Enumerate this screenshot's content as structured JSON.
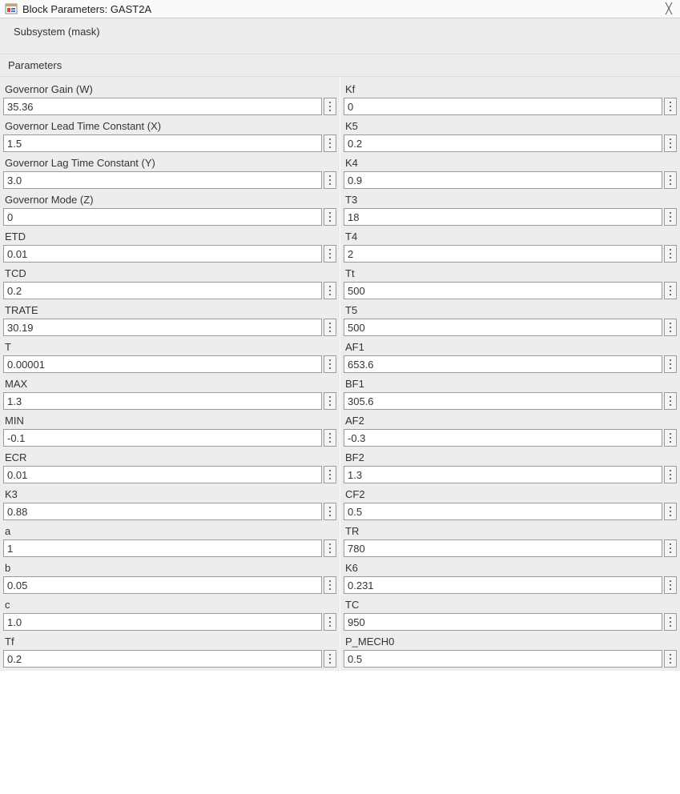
{
  "window": {
    "title": "Block Parameters: GAST2A",
    "subsystem_label": "Subsystem (mask)",
    "parameters_label": "Parameters"
  },
  "colors": {
    "panel_bg": "#ededed",
    "border": "#9a9a9a",
    "text": "#333333",
    "input_bg": "#ffffff"
  },
  "left_params": [
    {
      "label": "Governor Gain (W)",
      "value": "35.36"
    },
    {
      "label": "Governor Lead Time Constant (X)",
      "value": "1.5"
    },
    {
      "label": "Governor Lag Time Constant (Y)",
      "value": "3.0"
    },
    {
      "label": "Governor Mode (Z)",
      "value": "0"
    },
    {
      "label": "ETD",
      "value": "0.01"
    },
    {
      "label": "TCD",
      "value": "0.2"
    },
    {
      "label": "TRATE",
      "value": "30.19"
    },
    {
      "label": "T",
      "value": "0.00001"
    },
    {
      "label": "MAX",
      "value": "1.3"
    },
    {
      "label": "MIN",
      "value": "-0.1"
    },
    {
      "label": "ECR",
      "value": "0.01"
    },
    {
      "label": "K3",
      "value": "0.88"
    },
    {
      "label": "a",
      "value": "1"
    },
    {
      "label": "b",
      "value": "0.05"
    },
    {
      "label": "c",
      "value": "1.0"
    },
    {
      "label": "Tf",
      "value": "0.2"
    }
  ],
  "right_params": [
    {
      "label": "Kf",
      "value": "0"
    },
    {
      "label": "K5",
      "value": "0.2"
    },
    {
      "label": "K4",
      "value": "0.9"
    },
    {
      "label": "T3",
      "value": "18"
    },
    {
      "label": "T4",
      "value": "2"
    },
    {
      "label": "Tt",
      "value": "500"
    },
    {
      "label": "T5",
      "value": "500"
    },
    {
      "label": "AF1",
      "value": "653.6"
    },
    {
      "label": "BF1",
      "value": "305.6"
    },
    {
      "label": "AF2",
      "value": "-0.3"
    },
    {
      "label": "BF2",
      "value": "1.3"
    },
    {
      "label": "CF2",
      "value": "0.5"
    },
    {
      "label": "TR",
      "value": "780"
    },
    {
      "label": "K6",
      "value": "0.231"
    },
    {
      "label": "TC",
      "value": "950"
    },
    {
      "label": "P_MECH0",
      "value": "0.5"
    }
  ]
}
